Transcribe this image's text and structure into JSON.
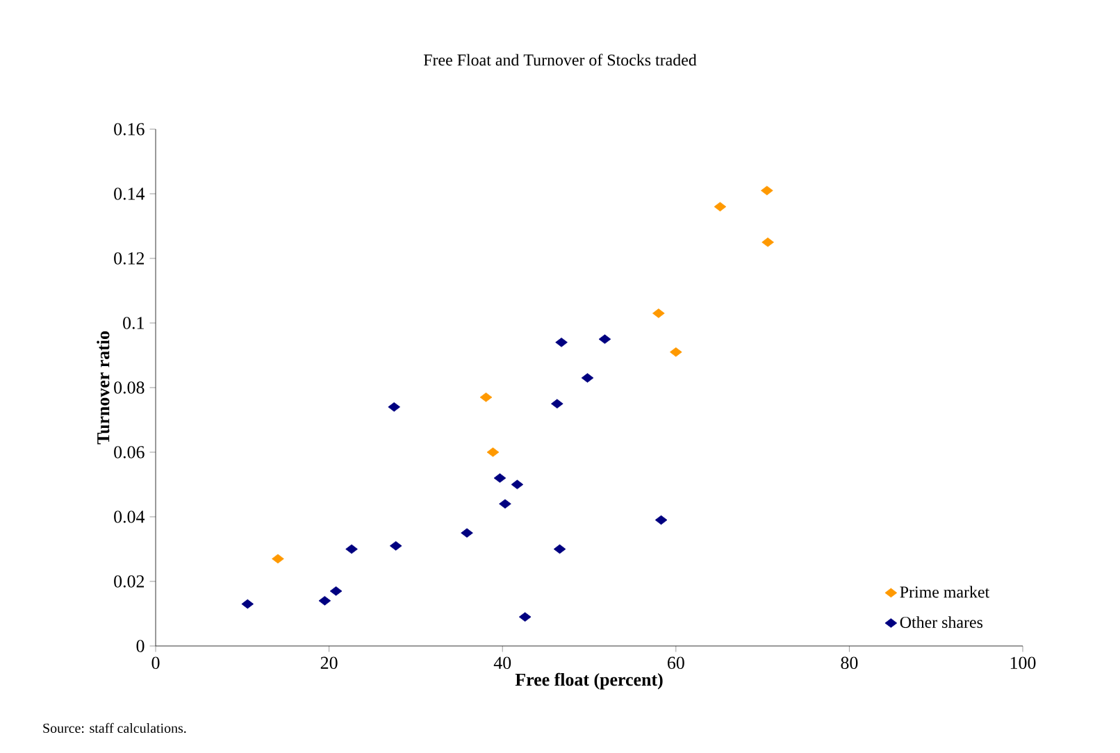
{
  "chart_data": {
    "type": "scatter",
    "title": "Free Float and Turnover of Stocks traded",
    "xlabel": "Free float (percent)",
    "ylabel": "Turnover ratio",
    "annotations": [
      "Source: staff calculations."
    ],
    "xlim": [
      0,
      100
    ],
    "xticks": [
      0,
      20,
      40,
      60,
      80,
      100
    ],
    "ylim": [
      0,
      0.16
    ],
    "yticks": [
      0,
      0.02,
      0.04,
      0.06,
      0.08,
      0.1,
      0.12,
      0.14,
      0.16
    ],
    "marker": "diamond",
    "legend": "bottom right",
    "grid": false,
    "series": [
      {
        "name": "Prime market",
        "color": "#ff9900",
        "x": [
          14.1,
          38.1,
          38.9,
          58.0,
          60.0,
          65.1,
          70.5,
          70.6
        ],
        "values": [
          0.027,
          0.077,
          0.06,
          0.103,
          0.091,
          0.136,
          0.141,
          0.125
        ]
      },
      {
        "name": "Other shares",
        "color": "#000080",
        "x": [
          10.6,
          19.5,
          20.8,
          22.6,
          27.5,
          27.7,
          35.9,
          39.7,
          41.7,
          40.3,
          42.6,
          46.3,
          46.8,
          46.6,
          49.8,
          51.8,
          58.3
        ],
        "values": [
          0.013,
          0.014,
          0.017,
          0.03,
          0.074,
          0.031,
          0.035,
          0.052,
          0.05,
          0.044,
          0.009,
          0.075,
          0.094,
          0.03,
          0.083,
          0.095,
          0.039
        ]
      }
    ]
  }
}
